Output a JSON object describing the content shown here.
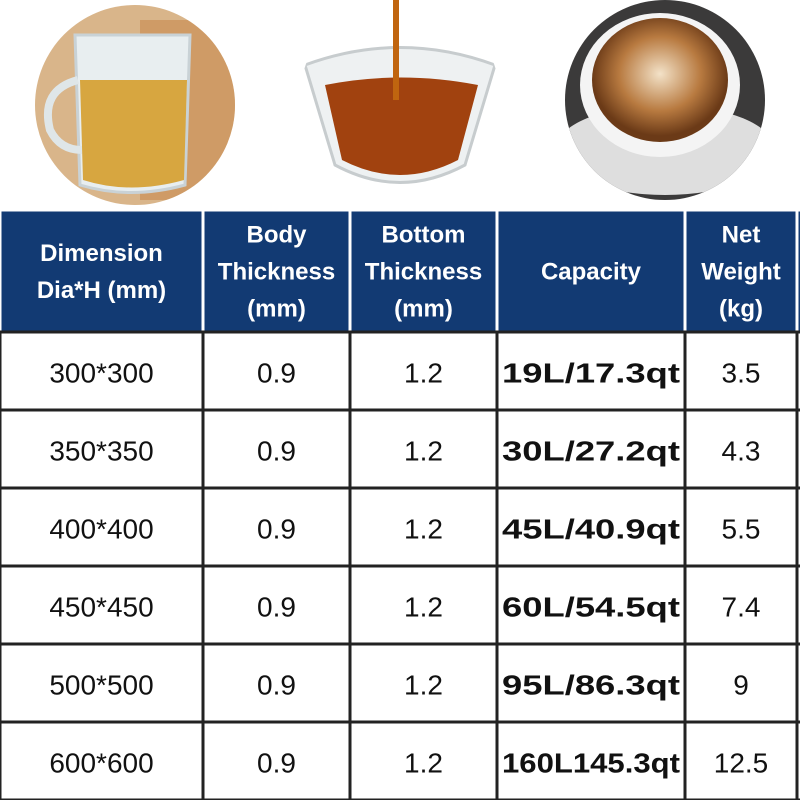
{
  "table": {
    "header": [
      [
        "Dimension",
        "Dia*H (mm)"
      ],
      [
        "Body",
        "Thickness",
        "(mm)"
      ],
      [
        "Bottom",
        "Thickness",
        "(mm)"
      ],
      [
        "Capacity"
      ],
      [
        "Net",
        "Weight",
        "(kg)"
      ]
    ],
    "rows": [
      [
        "300*300",
        "0.9",
        "1.2",
        "19L/17.3qt",
        "3.5"
      ],
      [
        "350*350",
        "0.9",
        "1.2",
        "30L/27.2qt",
        "4.3"
      ],
      [
        "400*400",
        "0.9",
        "1.2",
        "45L/40.9qt",
        "5.5"
      ],
      [
        "450*450",
        "0.9",
        "1.2",
        "60L/54.5qt",
        "7.4"
      ],
      [
        "500*500",
        "0.9",
        "1.2",
        "95L/86.3qt",
        "9"
      ],
      [
        "600*600",
        "0.9",
        "1.2",
        "160L145.3qt",
        "12.5"
      ]
    ]
  }
}
